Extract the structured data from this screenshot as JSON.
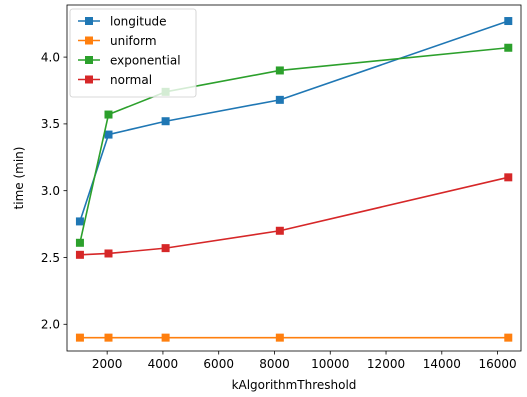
{
  "chart_data": {
    "type": "line",
    "xlabel": "kAlgorithmThreshold",
    "ylabel": "time (min)",
    "xlim": [
      560,
      16840
    ],
    "ylim": [
      1.8,
      4.39
    ],
    "xticks": [
      2000,
      4000,
      6000,
      8000,
      10000,
      12000,
      14000,
      16000
    ],
    "xtick_labels": [
      "2000",
      "4000",
      "6000",
      "8000",
      "10000",
      "12000",
      "14000",
      "16000"
    ],
    "yticks": [
      2.0,
      2.5,
      3.0,
      3.5,
      4.0
    ],
    "ytick_labels": [
      "2.0",
      "2.5",
      "3.0",
      "3.5",
      "4.0"
    ],
    "grid": false,
    "legend_position": "top-left",
    "marker": "square",
    "x": [
      1024,
      2048,
      4096,
      8192,
      16384
    ],
    "series": [
      {
        "name": "longitude",
        "color": "#1f77b4",
        "values": [
          2.77,
          3.42,
          3.52,
          3.68,
          4.27
        ]
      },
      {
        "name": "uniform",
        "color": "#ff7f0e",
        "values": [
          1.9,
          1.9,
          1.9,
          1.9,
          1.9
        ]
      },
      {
        "name": "exponential",
        "color": "#2ca02c",
        "values": [
          2.61,
          3.57,
          3.74,
          3.9,
          4.07
        ]
      },
      {
        "name": "normal",
        "color": "#d62728",
        "values": [
          2.52,
          2.53,
          2.57,
          2.7,
          3.1
        ]
      }
    ]
  }
}
